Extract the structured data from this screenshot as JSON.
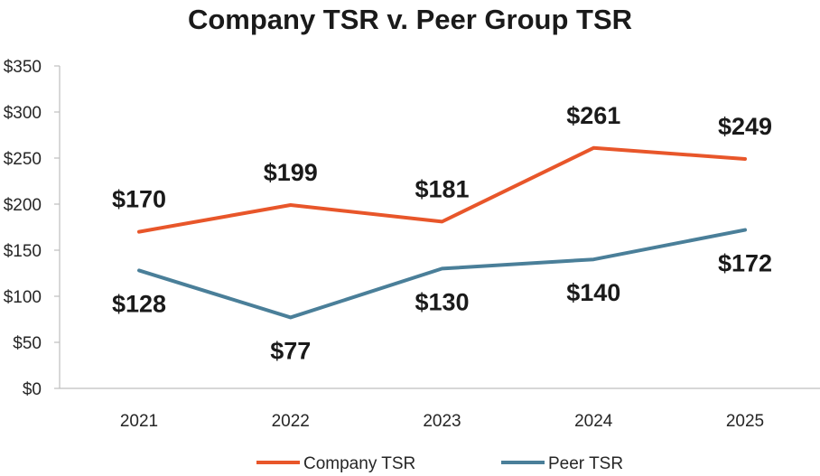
{
  "chart_data": {
    "type": "line",
    "title": "Company TSR v. Peer Group TSR",
    "categories": [
      "2021",
      "2022",
      "2023",
      "2024",
      "2025"
    ],
    "series": [
      {
        "name": "Company TSR",
        "values": [
          170,
          199,
          181,
          261,
          249
        ],
        "labels": [
          "$170",
          "$199",
          "$181",
          "$261",
          "$249"
        ],
        "color": "#e8562a",
        "label_position": "above"
      },
      {
        "name": "Peer TSR",
        "values": [
          128,
          77,
          130,
          140,
          172
        ],
        "labels": [
          "$128",
          "$77",
          "$130",
          "$140",
          "$172"
        ],
        "color": "#4a7f99",
        "label_position": "below"
      }
    ],
    "ylim": [
      0,
      350
    ],
    "yticks": [
      0,
      50,
      100,
      150,
      200,
      250,
      300,
      350
    ],
    "ytick_labels": [
      "$0",
      "$50",
      "$100",
      "$150",
      "$200",
      "$250",
      "$300",
      "$350"
    ],
    "xlabel": "",
    "ylabel": "",
    "grid": false,
    "legend": "bottom"
  }
}
